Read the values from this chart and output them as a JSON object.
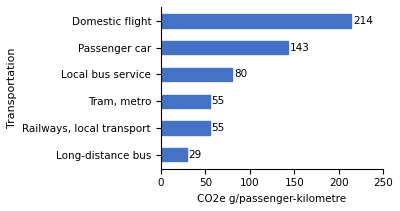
{
  "categories": [
    "Domestic flight",
    "Passenger car",
    "Local bus service",
    "Tram, metro",
    "Railways, local transport",
    "Long-distance bus"
  ],
  "values": [
    214,
    143,
    80,
    55,
    55,
    29
  ],
  "bar_color": "#4472C4",
  "ylabel": "Transportation",
  "xlabel": "CO2e g/passenger-kilometre",
  "xlim": [
    0,
    250
  ],
  "xticks": [
    0,
    50,
    100,
    150,
    200,
    250
  ],
  "bar_height": 0.5,
  "value_labels": [
    "214",
    "143",
    "80",
    "55",
    "55",
    "29"
  ],
  "background_color": "#ffffff"
}
